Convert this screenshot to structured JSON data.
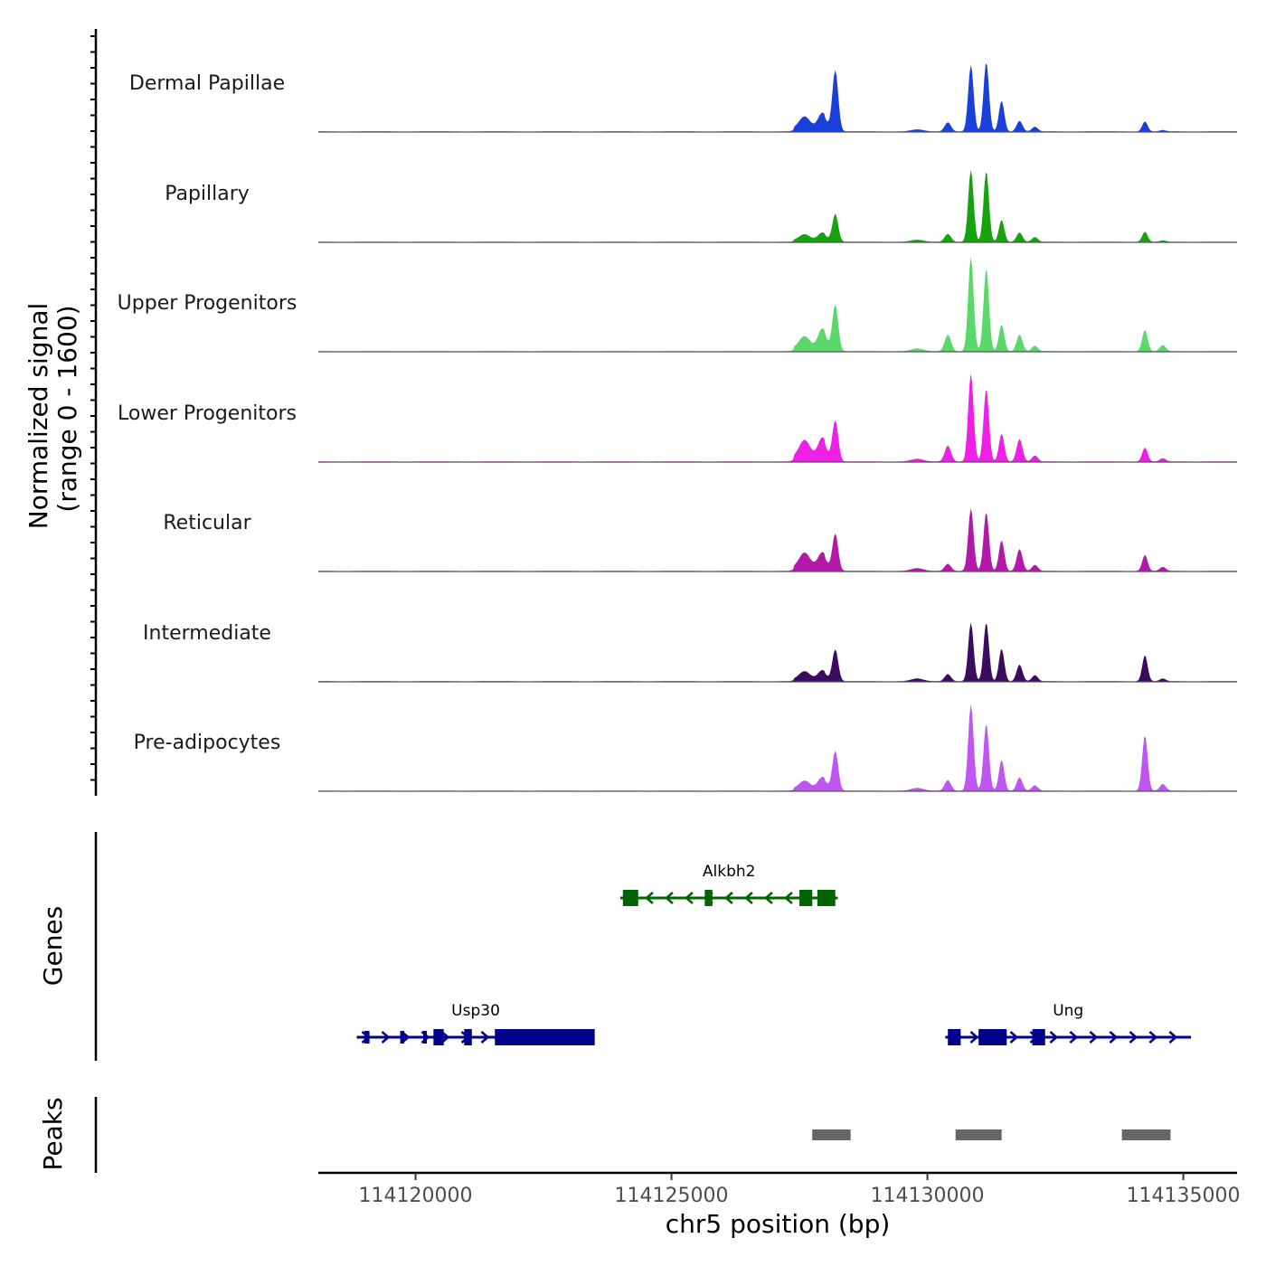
{
  "chart_data": {
    "type": "area",
    "title": "",
    "ylabel": "Normalized signal\n(range 0 - 1600)",
    "ylabel_lines": [
      "Normalized signal",
      "(range 0 - 1600)"
    ],
    "ylim": [
      0,
      1600
    ],
    "xlabel": "chr5 position (bp)",
    "xlim": [
      114118100,
      114136050
    ],
    "x_ticks": [
      114120000,
      114125000,
      114130000,
      114135000
    ],
    "x_tick_labels": [
      "114120000",
      "114125000",
      "114130000",
      "114135000"
    ],
    "grid": false,
    "peak_positions_bp": [
      114127600,
      114127950,
      114128200,
      114129800,
      114130400,
      114130850,
      114131150,
      114131450,
      114131800,
      114132100,
      114134250,
      114134600
    ],
    "series": [
      {
        "name": "Dermal Papillae",
        "color": "#1a3fdb",
        "values": [
          180,
          240,
          920,
          30,
          140,
          1000,
          1040,
          460,
          160,
          70,
          150,
          20
        ]
      },
      {
        "name": "Papillary",
        "color": "#16a30f",
        "values": [
          90,
          120,
          420,
          30,
          120,
          1080,
          1060,
          330,
          140,
          70,
          150,
          20
        ]
      },
      {
        "name": "Upper Progenitors",
        "color": "#5ad96a",
        "values": [
          180,
          300,
          700,
          40,
          250,
          1420,
          1240,
          400,
          250,
          80,
          320,
          90
        ]
      },
      {
        "name": "Lower Progenitors",
        "color": "#f01fe8",
        "values": [
          260,
          300,
          620,
          40,
          240,
          1320,
          1090,
          420,
          340,
          90,
          210,
          50
        ]
      },
      {
        "name": "Reticular",
        "color": "#b318a8",
        "values": [
          220,
          230,
          560,
          40,
          110,
          940,
          880,
          460,
          330,
          90,
          240,
          60
        ]
      },
      {
        "name": "Intermediate",
        "color": "#3b0b5e",
        "values": [
          120,
          140,
          480,
          40,
          110,
          880,
          880,
          490,
          250,
          90,
          390,
          40
        ]
      },
      {
        "name": "Pre-adipocytes",
        "color": "#bf55f3",
        "values": [
          120,
          180,
          600,
          40,
          160,
          1300,
          1000,
          460,
          200,
          80,
          830,
          100
        ]
      }
    ],
    "genes_track": {
      "label": "Genes",
      "genes": [
        {
          "name": "Alkbh2",
          "strand": "-",
          "start": 114124000,
          "end": 114128250,
          "color": "#006400",
          "exons": [
            [
              114124050,
              114124350
            ],
            [
              114125650,
              114125800
            ],
            [
              114127500,
              114127750
            ],
            [
              114127850,
              114128200
            ]
          ]
        },
        {
          "name": "Usp30",
          "strand": "+",
          "start": 114118850,
          "end": 114123500,
          "color": "#00008b",
          "exons": [
            [
              114119000,
              114119100
            ],
            [
              114119700,
              114119780
            ],
            [
              114120150,
              114120220
            ],
            [
              114120350,
              114120550
            ],
            [
              114120950,
              114121100
            ],
            [
              114121550,
              114123500
            ]
          ]
        },
        {
          "name": "Ung",
          "strand": "+",
          "start": 114130350,
          "end": 114135150,
          "color": "#00008b",
          "exons": [
            [
              114130400,
              114130650
            ],
            [
              114131000,
              114131550
            ],
            [
              114132050,
              114132300
            ]
          ]
        }
      ]
    },
    "peaks_track": {
      "label": "Peaks",
      "color": "#666666",
      "peaks": [
        [
          114127750,
          114128500
        ],
        [
          114130550,
          114131450
        ],
        [
          114133800,
          114134750
        ]
      ]
    }
  }
}
